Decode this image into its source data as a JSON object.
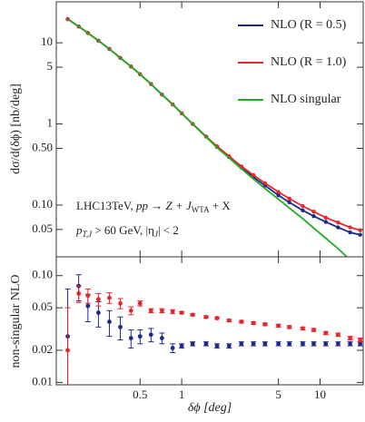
{
  "chart_data": [
    {
      "type": "line",
      "ylabel": "dσ/d(δϕ) [nb/deg]",
      "x": [
        0.15,
        0.18,
        0.21,
        0.25,
        0.3,
        0.36,
        0.43,
        0.5,
        0.6,
        0.72,
        0.86,
        1.0,
        1.2,
        1.5,
        1.8,
        2.2,
        2.7,
        3.3,
        4,
        5,
        6,
        7.5,
        9,
        11,
        13.5,
        16.5,
        19.5
      ],
      "series": [
        {
          "name": "NLO (R = 0.5)",
          "color": "#1b2a8c",
          "markers": true,
          "values": [
            19.6,
            15.9,
            13.2,
            10.6,
            8.4,
            6.5,
            5.1,
            4.1,
            3.1,
            2.3,
            1.74,
            1.35,
            1.0,
            0.7,
            0.52,
            0.39,
            0.29,
            0.22,
            0.174,
            0.132,
            0.108,
            0.086,
            0.073,
            0.062,
            0.053,
            0.046,
            0.043
          ]
        },
        {
          "name": "NLO (R = 1.0)",
          "color": "#e5262b",
          "markers": true,
          "values": [
            19.6,
            15.9,
            13.2,
            10.6,
            8.4,
            6.5,
            5.1,
            4.1,
            3.1,
            2.3,
            1.74,
            1.35,
            1.0,
            0.7,
            0.53,
            0.4,
            0.3,
            0.234,
            0.186,
            0.145,
            0.12,
            0.097,
            0.083,
            0.07,
            0.061,
            0.053,
            0.049
          ]
        },
        {
          "name": "NLO singular",
          "color": "#1fae22",
          "markers": false,
          "values": [
            19.6,
            15.9,
            13.2,
            10.6,
            8.4,
            6.5,
            5.1,
            4.1,
            3.1,
            2.3,
            1.74,
            1.35,
            1.0,
            0.69,
            0.51,
            0.38,
            0.28,
            0.21,
            0.16,
            0.118,
            0.092,
            0.068,
            0.052,
            0.039,
            0.029,
            0.021,
            0.016
          ]
        }
      ],
      "xscale": "log",
      "yscale": "log",
      "xlim": [
        0.124,
        20.5
      ],
      "ylim": [
        0.023,
        32
      ],
      "xticks": [
        0.5,
        1,
        5,
        10
      ],
      "yticks": [
        0.05,
        {
          "value": 0.1,
          "label": "0.10"
        },
        {
          "value": 0.5,
          "label": "0.50"
        },
        1,
        5,
        10
      ],
      "legend": "upper right",
      "annotations": [
        [
          "LHC13TeV, ",
          "pp → Z + J",
          "WTA",
          " + X"
        ],
        [
          "p",
          "T,J",
          " > 60 GeV,  |η",
          "J",
          "| < 2"
        ]
      ]
    },
    {
      "type": "errorbar",
      "ylabel": "non-singular NLO",
      "xlabel": "δϕ [deg]",
      "x": [
        0.15,
        0.18,
        0.21,
        0.25,
        0.3,
        0.36,
        0.43,
        0.5,
        0.6,
        0.72,
        0.86,
        1.0,
        1.2,
        1.5,
        1.8,
        2.2,
        2.7,
        3.3,
        4,
        5,
        6,
        7.5,
        9,
        11,
        13.5,
        16.5,
        19.5
      ],
      "series": [
        {
          "name": "NLO (R = 0.5)",
          "color": "#1b2a8c",
          "values": [
            0.027,
            0.08,
            0.052,
            0.045,
            0.037,
            0.033,
            0.026,
            0.027,
            0.028,
            0.026,
            0.021,
            0.022,
            0.023,
            0.023,
            0.022,
            0.022,
            0.023,
            0.023,
            0.023,
            0.023,
            0.023,
            0.023,
            0.023,
            0.023,
            0.023,
            0.023,
            0.023
          ],
          "errors": [
            0.048,
            0.022,
            0.015,
            0.012,
            0.01,
            0.008,
            0.005,
            0.004,
            0.004,
            0.003,
            0.002,
            0.001,
            0.001,
            0.001,
            0.001,
            0.001,
            0.001,
            0.001,
            0.001,
            0.001,
            0.001,
            0.001,
            0.001,
            0.001,
            0.001,
            0.001,
            0.001
          ]
        },
        {
          "name": "NLO (R = 1.0)",
          "color": "#e5262b",
          "values": [
            0.02,
            0.068,
            0.065,
            0.06,
            0.062,
            0.055,
            0.047,
            0.055,
            0.047,
            0.047,
            0.046,
            0.045,
            0.043,
            0.041,
            0.04,
            0.038,
            0.037,
            0.036,
            0.035,
            0.034,
            0.033,
            0.032,
            0.031,
            0.029,
            0.028,
            0.026,
            0.025
          ],
          "errors": [
            0.03,
            0.012,
            0.01,
            0.008,
            0.007,
            0.006,
            0.004,
            0.003,
            0.002,
            0.002,
            0.002,
            0.001,
            0.001,
            0.001,
            0.001,
            0.001,
            0.001,
            0.001,
            0.001,
            0.001,
            0.001,
            0.001,
            0.001,
            0.001,
            0.001,
            0.001,
            0.001
          ]
        }
      ],
      "xscale": "log",
      "yscale": "log",
      "xlim": [
        0.124,
        20.5
      ],
      "ylim": [
        0.0095,
        0.15
      ],
      "xticks": [
        0.5,
        1,
        5,
        10
      ],
      "yticks": [
        0.01,
        0.02,
        0.05,
        {
          "value": 0.1,
          "label": "0.10"
        }
      ]
    }
  ]
}
